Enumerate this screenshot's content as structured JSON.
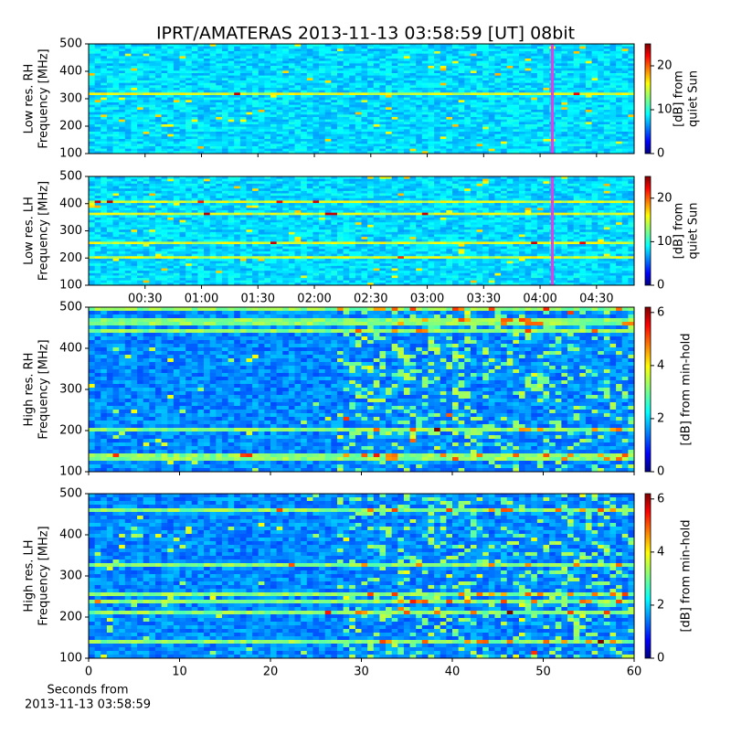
{
  "title": "IPRT/AMATERAS 2013-11-13 03:58:59 [UT]   08bit",
  "chart_data": [
    {
      "type": "heatmap",
      "ylabel": [
        "Low res. RH",
        "Frequency [MHz]"
      ],
      "ylim": [
        100,
        500
      ],
      "yticks": [
        100,
        200,
        300,
        400,
        500
      ],
      "xlim": [
        0,
        290
      ],
      "xticks": [
        30,
        60,
        90,
        120,
        150,
        180,
        210,
        240,
        270
      ],
      "xtick_labels": false,
      "colorbar_label": [
        "[dB] from",
        "quiet Sun"
      ],
      "clim": [
        0,
        25
      ],
      "cticks": [
        0,
        10,
        20
      ],
      "colormap": "jet"
    },
    {
      "type": "heatmap",
      "ylabel": [
        "Low res. LH",
        "Frequency [MHz]"
      ],
      "ylim": [
        100,
        500
      ],
      "yticks": [
        100,
        200,
        300,
        400,
        500
      ],
      "xlim": [
        0,
        290
      ],
      "xticks": [
        {
          "value": 30,
          "label": "00:30"
        },
        {
          "value": 60,
          "label": "01:00"
        },
        {
          "value": 90,
          "label": "01:30"
        },
        {
          "value": 120,
          "label": "02:00"
        },
        {
          "value": 150,
          "label": "02:30"
        },
        {
          "value": 180,
          "label": "03:00"
        },
        {
          "value": 210,
          "label": "03:30"
        },
        {
          "value": 240,
          "label": "04:00"
        },
        {
          "value": 270,
          "label": "04:30"
        }
      ],
      "xtick_labels": true,
      "colorbar_label": [
        "[dB] from",
        "quiet Sun"
      ],
      "clim": [
        0,
        25
      ],
      "cticks": [
        0,
        10,
        20
      ],
      "colormap": "jet"
    },
    {
      "type": "heatmap",
      "ylabel": [
        "High res. RH",
        "Frequency [MHz]"
      ],
      "ylim": [
        100,
        500
      ],
      "yticks": [
        100,
        200,
        300,
        400,
        500
      ],
      "xlim": [
        0,
        60
      ],
      "xticks": [
        0,
        10,
        20,
        30,
        40,
        50,
        60
      ],
      "xtick_labels": false,
      "colorbar_label": [
        "[dB] from min-hold"
      ],
      "clim": [
        0,
        6.2
      ],
      "cticks": [
        0,
        2,
        4,
        6
      ],
      "colormap": "jet"
    },
    {
      "type": "heatmap",
      "ylabel": [
        "High res. LH",
        "Frequency [MHz]"
      ],
      "ylim": [
        100,
        500
      ],
      "yticks": [
        100,
        200,
        300,
        400,
        500
      ],
      "xlim": [
        0,
        60
      ],
      "xticks": [
        0,
        10,
        20,
        30,
        40,
        50,
        60
      ],
      "xtick_labels": true,
      "xlabel": [
        "Seconds from",
        "2013-11-13 03:58:59"
      ],
      "colorbar_label": [
        "[dB] from min-hold"
      ],
      "clim": [
        0,
        6.2
      ],
      "cticks": [
        0,
        2,
        4,
        6
      ],
      "colormap": "jet"
    }
  ]
}
